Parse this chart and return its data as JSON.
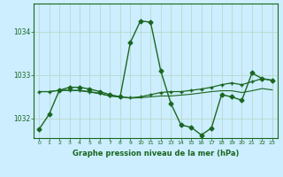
{
  "title": "Graphe pression niveau de la mer (hPa)",
  "background_color": "#cceeff",
  "grid_color": "#b8d8cc",
  "line_color": "#1a6620",
  "xlim": [
    -0.5,
    23.5
  ],
  "ylim": [
    1031.55,
    1034.65
  ],
  "yticks": [
    1032,
    1033,
    1034
  ],
  "xticks": [
    0,
    1,
    2,
    3,
    4,
    5,
    6,
    7,
    8,
    9,
    10,
    11,
    12,
    13,
    14,
    15,
    16,
    17,
    18,
    19,
    20,
    21,
    22,
    23
  ],
  "series1_x": [
    0,
    1,
    2,
    3,
    4,
    5,
    6,
    7,
    8,
    9,
    10,
    11,
    12,
    13,
    14,
    15,
    16,
    17,
    18,
    19,
    20,
    21,
    22,
    23
  ],
  "series1_y": [
    1031.75,
    1032.1,
    1032.65,
    1032.72,
    1032.72,
    1032.68,
    1032.62,
    1032.55,
    1032.5,
    1033.75,
    1034.25,
    1034.22,
    1033.1,
    1032.35,
    1031.85,
    1031.8,
    1031.62,
    1031.78,
    1032.55,
    1032.5,
    1032.42,
    1033.05,
    1032.92,
    1032.88
  ],
  "series2_x": [
    0,
    1,
    2,
    3,
    4,
    5,
    6,
    7,
    8,
    9,
    10,
    11,
    12,
    13,
    14,
    15,
    16,
    17,
    18,
    19,
    20,
    21,
    22,
    23
  ],
  "series2_y": [
    1032.62,
    1032.62,
    1032.65,
    1032.65,
    1032.65,
    1032.62,
    1032.58,
    1032.52,
    1032.5,
    1032.48,
    1032.5,
    1032.55,
    1032.6,
    1032.62,
    1032.62,
    1032.65,
    1032.68,
    1032.72,
    1032.78,
    1032.82,
    1032.78,
    1032.85,
    1032.92,
    1032.88
  ],
  "series3_x": [
    0,
    1,
    2,
    3,
    4,
    5,
    6,
    7,
    8,
    9,
    10,
    11,
    12,
    13,
    14,
    15,
    16,
    17,
    18,
    19,
    20,
    21,
    22,
    23
  ],
  "series3_y": [
    1032.62,
    1032.62,
    1032.65,
    1032.65,
    1032.64,
    1032.61,
    1032.57,
    1032.52,
    1032.5,
    1032.47,
    1032.48,
    1032.5,
    1032.52,
    1032.52,
    1032.54,
    1032.56,
    1032.59,
    1032.62,
    1032.64,
    1032.64,
    1032.6,
    1032.64,
    1032.69,
    1032.66
  ]
}
